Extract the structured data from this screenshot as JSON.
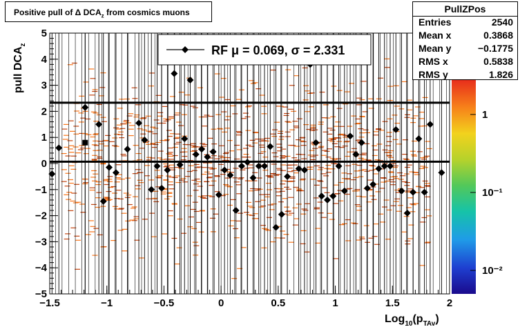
{
  "title": "Positive pull of Δ DCA",
  "title_sub": "z",
  "title_tail": " from cosmics muons",
  "stats": {
    "name": "PullZPos",
    "rows": [
      {
        "label": "Entries",
        "value": "2540"
      },
      {
        "label": "Mean x",
        "value": "0.3868"
      },
      {
        "label": "Mean y",
        "value": "−0.1775"
      },
      {
        "label": "RMS x",
        "value": "0.5838"
      },
      {
        "label": "RMS y",
        "value": "1.826"
      }
    ]
  },
  "legend": {
    "label": "RF μ = 0.069, σ = 2.331"
  },
  "colors": {
    "points": "#000000",
    "histogram_dark": "#c2410c",
    "histogram_light": "#f97316"
  },
  "chart_data": {
    "type": "scatter",
    "xlabel": "Log",
    "xlabel_sub": "10",
    "xlabel_tail": "(p",
    "xlabel_sub2": "TAv",
    "xlabel_end": ")",
    "ylabel": "pull DCA",
    "ylabel_sub": "z",
    "xlim": [
      -1.5,
      2
    ],
    "ylim": [
      -5,
      5
    ],
    "x_ticks": [
      {
        "v": -1.5,
        "label": "−1.5"
      },
      {
        "v": -1,
        "label": "−1"
      },
      {
        "v": -0.5,
        "label": "−0.5"
      },
      {
        "v": 0,
        "label": "0"
      },
      {
        "v": 0.5,
        "label": "0.5"
      },
      {
        "v": 1,
        "label": "1"
      },
      {
        "v": 1.5,
        "label": "1.5"
      },
      {
        "v": 2,
        "label": "2"
      }
    ],
    "y_ticks": [
      {
        "v": 5,
        "label": "5"
      },
      {
        "v": 4,
        "label": "4"
      },
      {
        "v": 3,
        "label": "3"
      },
      {
        "v": 2,
        "label": "2"
      },
      {
        "v": 1,
        "label": "1"
      },
      {
        "v": 0,
        "label": "0"
      },
      {
        "v": -1,
        "label": "−1"
      },
      {
        "v": -2,
        "label": "−2"
      },
      {
        "v": -3,
        "label": "−3"
      },
      {
        "v": -4,
        "label": "−4"
      },
      {
        "v": -5,
        "label": "−5"
      }
    ],
    "colorbar_ticks": [
      {
        "v": 1,
        "label": "1"
      },
      {
        "v": 0.1,
        "label": "10⁻¹"
      },
      {
        "v": 0.01,
        "label": "10⁻²"
      }
    ],
    "colorbar_range": [
      0.005,
      3
    ],
    "hlines": [
      {
        "y": 0.069,
        "name": "mean"
      },
      {
        "y": 2.331,
        "name": "sigma"
      }
    ],
    "special_point": {
      "x": -1.19,
      "y": 0.8
    },
    "points": [
      {
        "x": -1.48,
        "y": -0.4
      },
      {
        "x": -1.42,
        "y": 0.6
      },
      {
        "x": -1.19,
        "y": 2.15
      },
      {
        "x": -1.07,
        "y": 1.5
      },
      {
        "x": -1.03,
        "y": -1.45
      },
      {
        "x": -0.98,
        "y": -0.15
      },
      {
        "x": -0.92,
        "y": -0.35
      },
      {
        "x": -0.82,
        "y": 0.55
      },
      {
        "x": -0.72,
        "y": 1.55
      },
      {
        "x": -0.67,
        "y": 0.9
      },
      {
        "x": -0.61,
        "y": -1.0
      },
      {
        "x": -0.56,
        "y": -0.1
      },
      {
        "x": -0.52,
        "y": -0.95
      },
      {
        "x": -0.47,
        "y": -0.25
      },
      {
        "x": -0.41,
        "y": 3.45
      },
      {
        "x": -0.36,
        "y": -0.05
      },
      {
        "x": -0.32,
        "y": 0.95
      },
      {
        "x": -0.27,
        "y": 3.2
      },
      {
        "x": -0.22,
        "y": 0.35
      },
      {
        "x": -0.17,
        "y": 0.55
      },
      {
        "x": -0.12,
        "y": 0.25
      },
      {
        "x": -0.07,
        "y": 0.45
      },
      {
        "x": -0.02,
        "y": -1.2
      },
      {
        "x": 0.03,
        "y": -0.25
      },
      {
        "x": 0.08,
        "y": -0.45
      },
      {
        "x": 0.13,
        "y": -1.8
      },
      {
        "x": 0.18,
        "y": -0.1
      },
      {
        "x": 0.23,
        "y": 0.05
      },
      {
        "x": 0.28,
        "y": -0.55
      },
      {
        "x": 0.33,
        "y": -0.1
      },
      {
        "x": 0.38,
        "y": -0.1
      },
      {
        "x": 0.43,
        "y": 0.65
      },
      {
        "x": 0.48,
        "y": -2.45
      },
      {
        "x": 0.53,
        "y": -1.95
      },
      {
        "x": 0.58,
        "y": -0.5
      },
      {
        "x": 0.68,
        "y": -0.2
      },
      {
        "x": 0.73,
        "y": -0.25
      },
      {
        "x": 0.78,
        "y": 3.8
      },
      {
        "x": 0.83,
        "y": 0.8
      },
      {
        "x": 0.88,
        "y": -1.25
      },
      {
        "x": 0.93,
        "y": -1.4
      },
      {
        "x": 0.98,
        "y": -1.25
      },
      {
        "x": 1.03,
        "y": -0.1
      },
      {
        "x": 1.08,
        "y": -1.05
      },
      {
        "x": 1.13,
        "y": 1.05
      },
      {
        "x": 1.18,
        "y": 0.35
      },
      {
        "x": 1.23,
        "y": 0.8
      },
      {
        "x": 1.28,
        "y": -0.95
      },
      {
        "x": 1.33,
        "y": -0.8
      },
      {
        "x": 1.38,
        "y": -0.2
      },
      {
        "x": 1.43,
        "y": -0.1
      },
      {
        "x": 1.48,
        "y": -0.1
      },
      {
        "x": 1.53,
        "y": 1.3
      },
      {
        "x": 1.58,
        "y": -1.05
      },
      {
        "x": 1.63,
        "y": -1.9
      },
      {
        "x": 1.68,
        "y": -1.1
      },
      {
        "x": 1.73,
        "y": 0.95
      },
      {
        "x": 1.78,
        "y": -1.1
      },
      {
        "x": 1.83,
        "y": 1.5
      },
      {
        "x": 1.93,
        "y": -0.35
      }
    ]
  }
}
